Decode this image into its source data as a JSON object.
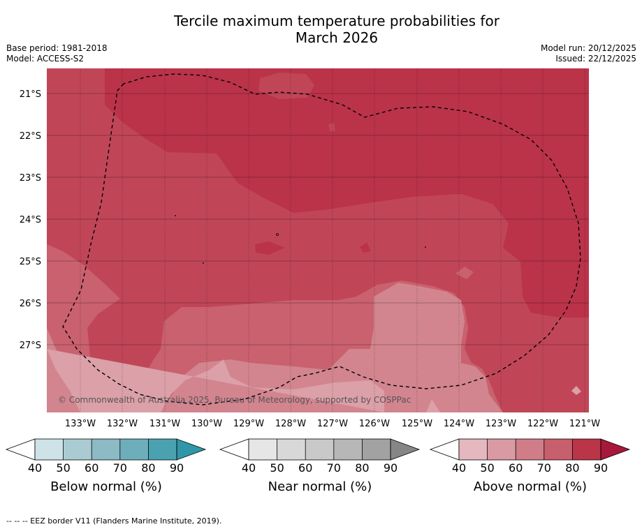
{
  "title_line1": "Tercile maximum temperature probabilities for",
  "title_line2": "March 2026",
  "base_period": "Base period: 1981-2018",
  "model": "Model: ACCESS-S2",
  "model_run": "Model run: 20/12/2025",
  "issued": "Issued: 22/12/2025",
  "copyright": "© Commonwealth of Australia 2025, Bureau of Meteorology, supported by COSPPac",
  "footnote": "--  --  -- EEZ border V11 (Flanders Marine Institute, 2019).",
  "lat_labels": [
    "21°S",
    "22°S",
    "23°S",
    "24°S",
    "25°S",
    "26°S",
    "27°S"
  ],
  "lon_labels": [
    "133°W",
    "132°W",
    "131°W",
    "130°W",
    "129°W",
    "128°W",
    "127°W",
    "126°W",
    "125°W",
    "124°W",
    "123°W",
    "122°W",
    "121°W"
  ],
  "colorbars": [
    {
      "title": "Below normal (%)",
      "ticks": [
        "40",
        "50",
        "60",
        "70",
        "80",
        "90"
      ],
      "colors": [
        "#ffffff",
        "#cde3e8",
        "#aacbd1",
        "#8cbac5",
        "#6eaebb",
        "#4aa2b1",
        "#2f97a8"
      ]
    },
    {
      "title": "Near normal (%)",
      "ticks": [
        "40",
        "50",
        "60",
        "70",
        "80",
        "90"
      ],
      "colors": [
        "#ffffff",
        "#e6e6e6",
        "#d8d8d8",
        "#c9c9c9",
        "#b7b7b7",
        "#a2a2a2",
        "#868686"
      ]
    },
    {
      "title": "Above normal (%)",
      "ticks": [
        "40",
        "50",
        "60",
        "70",
        "80",
        "90"
      ],
      "colors": [
        "#ffffff",
        "#e5b7bf",
        "#d99aa3",
        "#d07d87",
        "#c75f6d",
        "#bb3549",
        "#a8183a"
      ]
    }
  ],
  "map_colors": {
    "c40": "#dba0a8",
    "c50": "#d2858f",
    "c60": "#c9616e",
    "c70": "#c04657",
    "c80": "#ba3349"
  }
}
